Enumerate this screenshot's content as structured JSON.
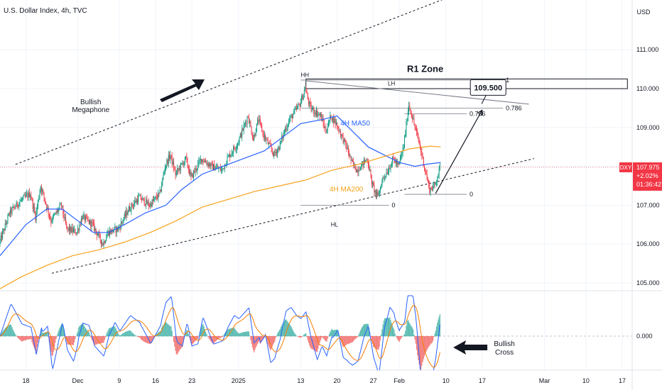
{
  "chart_data": {
    "type": "candlestick",
    "title": "U.S. Dollar Index, 4h, TVC",
    "currency": "USD",
    "y_ticks": [
      {
        "value": 111.0,
        "label": "111.000"
      },
      {
        "value": 110.0,
        "label": "110.000"
      },
      {
        "value": 109.0,
        "label": "109.000"
      },
      {
        "value": 108.0,
        "label": "108.000"
      },
      {
        "value": 107.0,
        "label": "107.000"
      },
      {
        "value": 106.0,
        "label": "106.000"
      },
      {
        "value": 105.0,
        "label": "105.000"
      }
    ],
    "ylim": [
      104.85,
      111.6
    ],
    "x_ticks": [
      {
        "label": "18",
        "day": -14
      },
      {
        "label": "Dec",
        "day": -4
      },
      {
        "label": "9",
        "day": 4
      },
      {
        "label": "16",
        "day": 11
      },
      {
        "label": "23",
        "day": 18
      },
      {
        "label": "2025",
        "day": 27
      },
      {
        "label": "13",
        "day": 39
      },
      {
        "label": "20",
        "day": 46
      },
      {
        "label": "27",
        "day": 53
      },
      {
        "label": "Feb",
        "day": 58
      },
      {
        "label": "10",
        "day": 67
      },
      {
        "label": "17",
        "day": 74
      },
      {
        "label": "Mar",
        "day": 86
      },
      {
        "label": "10",
        "day": 94
      },
      {
        "label": "17",
        "day": 101
      }
    ],
    "price_path": [
      [
        -19,
        106.0
      ],
      [
        -17,
        106.8
      ],
      [
        -15,
        107.1
      ],
      [
        -13,
        107.3
      ],
      [
        -12,
        106.7
      ],
      [
        -11,
        107.5
      ],
      [
        -9,
        106.6
      ],
      [
        -7,
        107.0
      ],
      [
        -6,
        106.4
      ],
      [
        -4,
        106.3
      ],
      [
        -3,
        106.7
      ],
      [
        -1,
        106.5
      ],
      [
        1,
        106.0
      ],
      [
        2,
        106.3
      ],
      [
        4,
        106.4
      ],
      [
        6,
        106.9
      ],
      [
        8,
        107.2
      ],
      [
        10,
        107.0
      ],
      [
        12,
        107.3
      ],
      [
        13,
        108.0
      ],
      [
        14,
        108.3
      ],
      [
        15,
        107.8
      ],
      [
        17,
        108.2
      ],
      [
        18,
        107.7
      ],
      [
        20,
        108.2
      ],
      [
        22,
        108.0
      ],
      [
        24,
        107.9
      ],
      [
        25,
        108.2
      ],
      [
        27,
        108.6
      ],
      [
        29,
        109.3
      ],
      [
        30,
        108.7
      ],
      [
        31,
        109.2
      ],
      [
        32,
        108.8
      ],
      [
        34,
        108.3
      ],
      [
        35,
        108.5
      ],
      [
        36,
        108.9
      ],
      [
        37,
        109.2
      ],
      [
        39,
        109.6
      ],
      [
        40,
        110.0
      ],
      [
        41,
        109.5
      ],
      [
        43,
        109.3
      ],
      [
        44,
        108.9
      ],
      [
        45,
        109.3
      ],
      [
        46,
        109.1
      ],
      [
        48,
        108.5
      ],
      [
        49,
        108.1
      ],
      [
        50,
        107.9
      ],
      [
        52,
        108.2
      ],
      [
        53,
        107.5
      ],
      [
        54,
        107.2
      ],
      [
        55,
        107.7
      ],
      [
        56,
        107.9
      ],
      [
        57,
        108.2
      ],
      [
        58,
        108.0
      ],
      [
        59,
        108.5
      ],
      [
        60,
        109.6
      ],
      [
        61,
        109.1
      ],
      [
        62,
        108.6
      ],
      [
        63,
        108.0
      ],
      [
        64,
        107.4
      ],
      [
        65,
        107.5
      ],
      [
        66,
        107.98
      ]
    ],
    "indicators": [
      {
        "name": "4H MA50",
        "color": "#2962ff",
        "points": [
          [
            -19,
            105.7
          ],
          [
            -14,
            106.5
          ],
          [
            -10,
            106.9
          ],
          [
            -7,
            106.9
          ],
          [
            -4,
            106.6
          ],
          [
            -1,
            106.3
          ],
          [
            2,
            106.3
          ],
          [
            5,
            106.5
          ],
          [
            9,
            106.8
          ],
          [
            13,
            107.0
          ],
          [
            16,
            107.4
          ],
          [
            20,
            107.8
          ],
          [
            24,
            108.0
          ],
          [
            28,
            108.2
          ],
          [
            32,
            108.4
          ],
          [
            35,
            108.7
          ],
          [
            39,
            109.1
          ],
          [
            43,
            109.2
          ],
          [
            46,
            109.3
          ],
          [
            49,
            108.9
          ],
          [
            52,
            108.5
          ],
          [
            55,
            108.3
          ],
          [
            58,
            108.1
          ],
          [
            61,
            108.0
          ],
          [
            63,
            108.05
          ],
          [
            66,
            108.1
          ]
        ]
      },
      {
        "name": "4H MA200",
        "color": "#f7a21b",
        "points": [
          [
            -19,
            104.85
          ],
          [
            -15,
            105.15
          ],
          [
            -10,
            105.45
          ],
          [
            -5,
            105.7
          ],
          [
            0,
            105.85
          ],
          [
            5,
            106.05
          ],
          [
            10,
            106.3
          ],
          [
            15,
            106.6
          ],
          [
            20,
            106.95
          ],
          [
            25,
            107.15
          ],
          [
            30,
            107.35
          ],
          [
            35,
            107.5
          ],
          [
            40,
            107.65
          ],
          [
            45,
            107.9
          ],
          [
            50,
            108.05
          ],
          [
            55,
            108.25
          ],
          [
            60,
            108.45
          ],
          [
            64,
            108.52
          ],
          [
            66,
            108.5
          ]
        ]
      }
    ],
    "trendlines": [
      {
        "name": "megaphone-upper",
        "from": [
          -16,
          108.05
        ],
        "to": [
          84,
          113.2
        ]
      },
      {
        "name": "megaphone-lower",
        "from": [
          -9,
          105.25
        ],
        "to": [
          84,
          108.2
        ]
      }
    ],
    "fib_upper": {
      "x_from": 39,
      "x_to": 78,
      "levels": [
        {
          "label": "1",
          "value": 110.22
        },
        {
          "label": "0.786",
          "value": 109.5
        }
      ]
    },
    "fib_lower": {
      "x_from": 39,
      "x_to": 56,
      "levels": [
        {
          "label": "0",
          "value": 107.0
        }
      ]
    },
    "fib_right": {
      "x_from": 59,
      "x_to": 71,
      "levels": [
        {
          "label": "0.786",
          "value": 109.35
        },
        {
          "label": "0",
          "value": 107.28
        }
      ]
    },
    "lh_line": {
      "from": [
        40,
        110.2
      ],
      "to": [
        83,
        109.6
      ]
    },
    "r1_zone": {
      "label": "R1 Zone",
      "x_from": 40,
      "x_to": 102,
      "top": 110.25,
      "bottom": 110.0
    },
    "target": {
      "label": "109.500",
      "value": 109.5,
      "day": 75
    },
    "projection": {
      "from": [
        65,
        107.3
      ],
      "to": [
        74,
        109.45
      ]
    },
    "annotations": [
      {
        "label": "HH",
        "day": 39.8,
        "value": 110.3
      },
      {
        "label": "LH",
        "day": 56.5,
        "value": 110.08
      },
      {
        "label": "HL",
        "day": 45.5,
        "value": 106.45
      },
      {
        "label": "4H MA50",
        "day": 49.5,
        "value": 109.05
      },
      {
        "label": "4H MA200",
        "day": 47.8,
        "value": 107.35
      },
      {
        "label": "Bullish\nMegaphone",
        "day": -1.5,
        "value": 109.6
      },
      {
        "label": "Bullish\nCross",
        "day": 78,
        "value": null
      }
    ],
    "last_price": {
      "label": "DXY",
      "value": 107.975,
      "price_label": "107.975",
      "change": "+2.02%",
      "countdown": "01:36:42"
    },
    "oscillator": {
      "zero_label": "0.000",
      "zero_value": 0,
      "histogram_colors": {
        "positive": "#26a69a",
        "negative": "#ef5350"
      }
    }
  }
}
